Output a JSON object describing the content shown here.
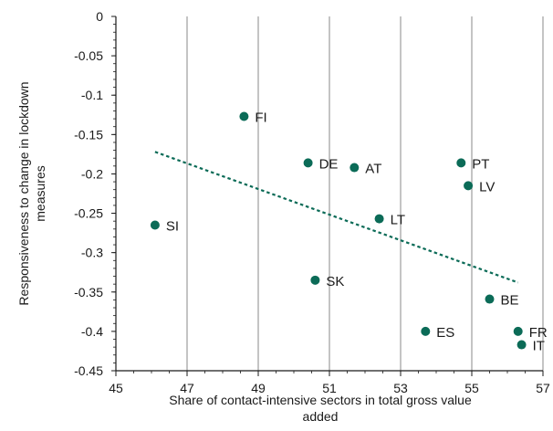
{
  "chart_data": {
    "type": "scatter",
    "xlabel": [
      "Share of contact-intensive sectors in total gross value",
      "added"
    ],
    "ylabel": [
      "Responsiveness to change in lockdown",
      "measures"
    ],
    "xlim": [
      45,
      57
    ],
    "ylim": [
      -0.45,
      0
    ],
    "x_ticks": [
      "45",
      "47",
      "49",
      "51",
      "53",
      "55",
      "57"
    ],
    "y_ticks": [
      "0",
      "-0.05",
      "-0.1",
      "-0.15",
      "-0.2",
      "-0.25",
      "-0.3",
      "-0.35",
      "-0.4",
      "-0.45"
    ],
    "grid": "vertical",
    "colors": {
      "points": "#0b6b57",
      "trend": "#0b6b57"
    },
    "points": [
      {
        "label": "FI",
        "x": 48.6,
        "y": -0.127
      },
      {
        "label": "DE",
        "x": 50.4,
        "y": -0.186
      },
      {
        "label": "AT",
        "x": 51.7,
        "y": -0.192
      },
      {
        "label": "PT",
        "x": 54.7,
        "y": -0.186
      },
      {
        "label": "LV",
        "x": 54.9,
        "y": -0.215
      },
      {
        "label": "SI",
        "x": 46.1,
        "y": -0.265
      },
      {
        "label": "LT",
        "x": 52.4,
        "y": -0.257
      },
      {
        "label": "SK",
        "x": 50.6,
        "y": -0.335
      },
      {
        "label": "BE",
        "x": 55.5,
        "y": -0.359
      },
      {
        "label": "ES",
        "x": 53.7,
        "y": -0.4
      },
      {
        "label": "FR",
        "x": 56.3,
        "y": -0.4
      },
      {
        "label": "IT",
        "x": 56.4,
        "y": -0.417
      }
    ],
    "trendline": {
      "x": [
        46.1,
        56.3
      ],
      "y": [
        -0.172,
        -0.338
      ]
    }
  }
}
